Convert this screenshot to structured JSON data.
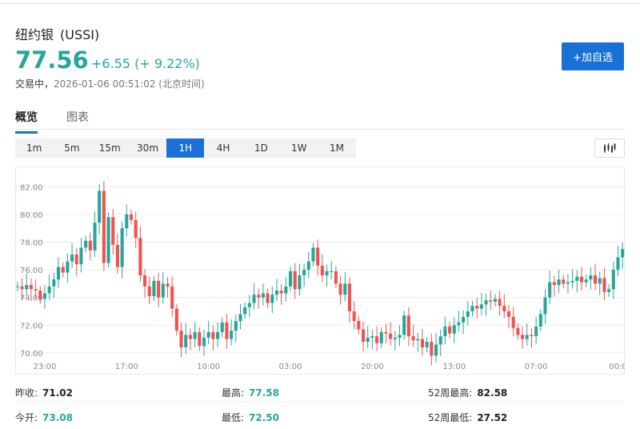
{
  "header": {
    "name": "纽约银",
    "code": "(USSI)",
    "price": "77.56",
    "change": "+6.55 (+ 9.22%)",
    "status_label": "交易中，",
    "timestamp": "2026-01-06 00:51:02 (北京时间)",
    "add_button": "+加自选"
  },
  "colors": {
    "up": "#26a69a",
    "down": "#ef5350",
    "accent": "#1971d5"
  },
  "tabs": [
    {
      "label": "概览",
      "active": true
    },
    {
      "label": "图表",
      "active": false
    }
  ],
  "intervals": [
    {
      "label": "1m"
    },
    {
      "label": "5m"
    },
    {
      "label": "15m"
    },
    {
      "label": "30m"
    },
    {
      "label": "1H",
      "active": true
    },
    {
      "label": "4H"
    },
    {
      "label": "1D"
    },
    {
      "label": "1W"
    },
    {
      "label": "1M"
    }
  ],
  "chart_type_icon": "candlestick-icon",
  "chart_data": {
    "type": "candlestick",
    "ylim": [
      69.3,
      83.0
    ],
    "yticks": [
      82.0,
      80.0,
      78.0,
      76.0,
      74.0,
      72.0,
      70.0
    ],
    "ytick_labels": [
      "82.00",
      "80.00",
      "78.00",
      "76.00",
      "74.00",
      "72.00",
      "70.00"
    ],
    "xtick_labels": [
      {
        "label": "23:00",
        "index": 6
      },
      {
        "label": "17:00",
        "index": 24
      },
      {
        "label": "10:00",
        "index": 42
      },
      {
        "label": "03:00",
        "index": 60
      },
      {
        "label": "20:00",
        "index": 78
      },
      {
        "label": "13:00",
        "index": 96
      },
      {
        "label": "07:00",
        "index": 114
      },
      {
        "label": "00:0",
        "index": 132
      }
    ],
    "closes": [
      74.8,
      74.6,
      74.9,
      74.6,
      74.5,
      73.9,
      74.3,
      74.8,
      75.3,
      76.2,
      75.8,
      76.6,
      77.1,
      76.4,
      77.6,
      78.1,
      77.4,
      79.4,
      81.7,
      76.5,
      79.8,
      77.8,
      76.2,
      79.0,
      80.0,
      79.6,
      78.3,
      75.6,
      74.8,
      74.1,
      75.2,
      74.0,
      75.0,
      74.8,
      73.2,
      71.6,
      70.4,
      71.3,
      71.0,
      71.5,
      70.5,
      71.1,
      71.5,
      71.0,
      71.5,
      72.2,
      71.0,
      71.6,
      72.3,
      72.8,
      73.3,
      73.6,
      74.2,
      74.0,
      74.3,
      73.6,
      74.2,
      74.5,
      74.3,
      74.8,
      75.9,
      74.6,
      75.6,
      76.0,
      76.6,
      77.6,
      76.3,
      75.6,
      75.9,
      75.9,
      75.0,
      74.2,
      75.0,
      73.0,
      72.3,
      71.7,
      70.8,
      71.1,
      71.2,
      70.7,
      71.5,
      71.4,
      71.0,
      71.1,
      71.3,
      72.7,
      71.2,
      70.9,
      71.0,
      70.4,
      70.8,
      69.8,
      70.6,
      71.2,
      71.9,
      71.4,
      72.0,
      72.2,
      72.6,
      73.0,
      73.4,
      73.2,
      73.5,
      73.8,
      73.7,
      73.9,
      73.4,
      73.0,
      72.6,
      71.8,
      71.3,
      71.0,
      71.3,
      71.2,
      71.9,
      72.8,
      74.0,
      75.1,
      74.9,
      75.3,
      75.0,
      75.1,
      75.2,
      75.5,
      75.1,
      75.3,
      75.6,
      75.0,
      75.4,
      74.4,
      74.6,
      76.0,
      76.9,
      77.5
    ],
    "opens": [
      74.8,
      74.8,
      74.6,
      74.9,
      74.6,
      74.5,
      73.9,
      74.3,
      74.8,
      75.3,
      76.2,
      75.8,
      76.6,
      77.1,
      76.4,
      77.6,
      78.1,
      77.4,
      79.4,
      81.7,
      76.5,
      79.8,
      77.8,
      76.2,
      79.0,
      80.0,
      79.6,
      78.3,
      75.6,
      74.8,
      74.1,
      75.2,
      74.0,
      75.0,
      74.8,
      73.2,
      71.6,
      70.4,
      71.3,
      71.0,
      71.5,
      70.5,
      71.1,
      71.5,
      71.0,
      71.5,
      72.2,
      71.0,
      71.6,
      72.3,
      72.8,
      73.3,
      73.6,
      74.2,
      74.0,
      74.3,
      73.6,
      74.2,
      74.5,
      74.3,
      74.8,
      75.9,
      74.6,
      75.6,
      76.0,
      76.6,
      77.6,
      76.3,
      75.6,
      75.9,
      75.9,
      75.0,
      74.2,
      75.0,
      73.0,
      72.3,
      71.7,
      70.8,
      71.1,
      71.2,
      70.7,
      71.5,
      71.4,
      71.0,
      71.1,
      71.3,
      72.7,
      71.2,
      70.9,
      71.0,
      70.4,
      70.8,
      69.8,
      70.6,
      71.2,
      71.9,
      71.4,
      72.0,
      72.2,
      72.6,
      73.0,
      73.4,
      73.2,
      73.5,
      73.8,
      73.7,
      73.9,
      73.4,
      73.0,
      72.6,
      71.8,
      71.3,
      71.0,
      71.3,
      71.2,
      71.9,
      72.8,
      74.0,
      75.1,
      74.9,
      75.3,
      75.0,
      75.1,
      75.2,
      75.5,
      75.1,
      75.3,
      75.6,
      75.0,
      75.4,
      74.4,
      74.6,
      76.0,
      76.9
    ]
  },
  "stats": [
    {
      "label": "昨收:",
      "value": "71.02",
      "tone": "dark"
    },
    {
      "label": "最高:",
      "value": "77.58",
      "tone": "green"
    },
    {
      "label": "52周最高:",
      "value": "82.58",
      "tone": "dark"
    },
    {
      "label": "今开:",
      "value": "73.08",
      "tone": "green"
    },
    {
      "label": "最低:",
      "value": "72.50",
      "tone": "green"
    },
    {
      "label": "52周最低:",
      "value": "27.52",
      "tone": "dark"
    }
  ]
}
